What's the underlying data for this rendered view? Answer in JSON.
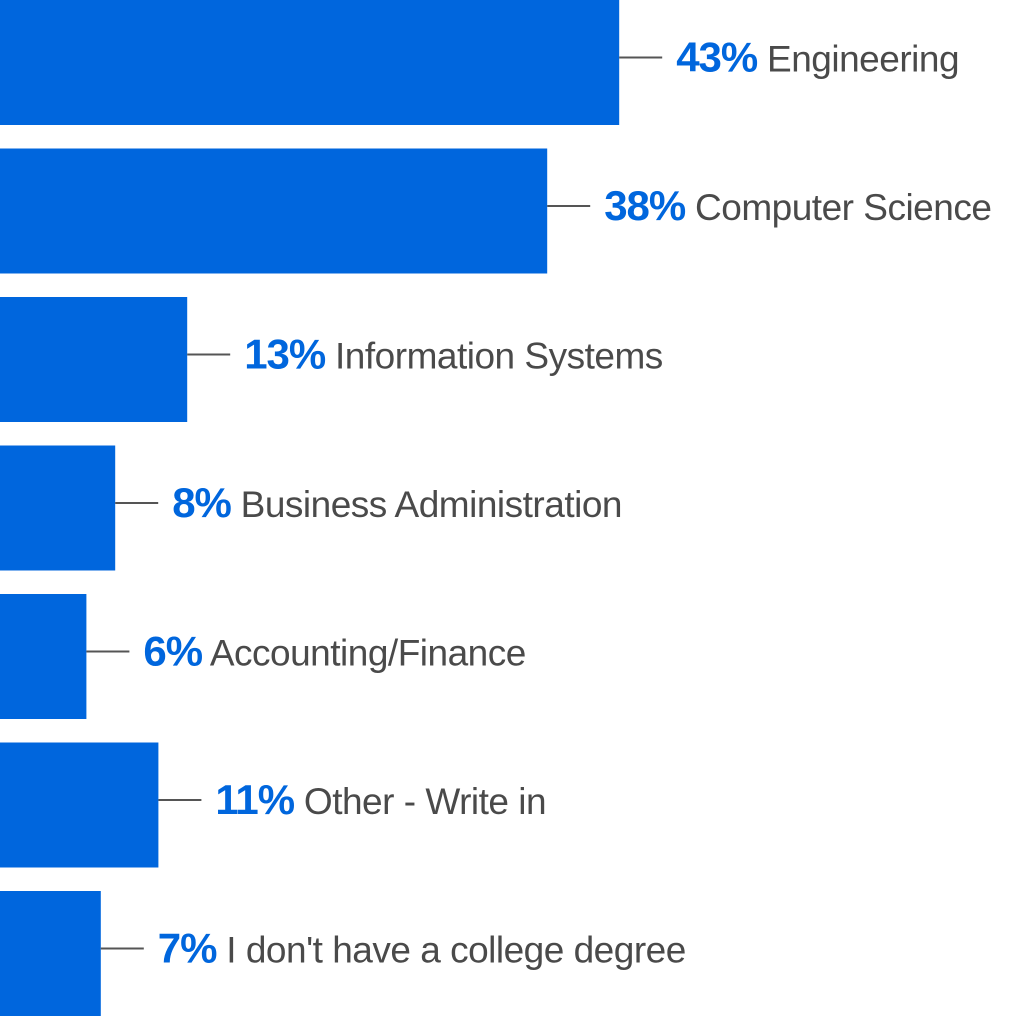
{
  "chart_data": {
    "type": "bar",
    "orientation": "horizontal",
    "categories": [
      "Engineering",
      "Computer Science",
      "Information Systems",
      "Business Administration",
      "Accounting/Finance",
      "Other - Write in",
      "I don't have a college degree"
    ],
    "values": [
      43,
      38,
      13,
      8,
      6,
      11,
      7
    ],
    "value_labels": [
      "43%",
      "38%",
      "13%",
      "8%",
      "6%",
      "11%",
      "7%"
    ],
    "unit": "%",
    "grid": false,
    "legend": "none"
  },
  "colors": {
    "bar": "#0066DD",
    "percent_text": "#0066DD",
    "category_text": "#4A4A4A",
    "leader_line": "#555555",
    "background": "#FFFFFF"
  }
}
